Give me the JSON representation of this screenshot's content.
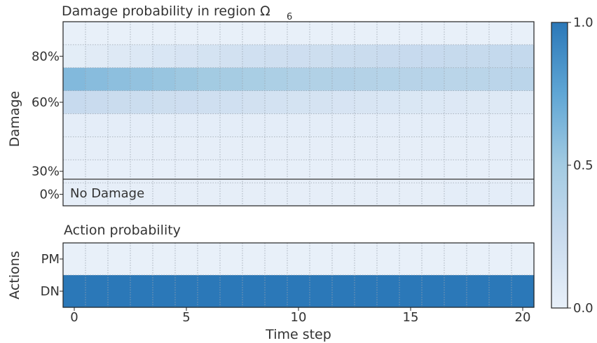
{
  "chart_data": [
    {
      "type": "heatmap",
      "title": "Damage probability in region Ω",
      "title_subscript": "6",
      "ylabel": "Damage",
      "time_steps": [
        0,
        1,
        2,
        3,
        4,
        5,
        6,
        7,
        8,
        9,
        10,
        11,
        12,
        13,
        14,
        15,
        16,
        17,
        18,
        19,
        20
      ],
      "rows": [
        "90%",
        "80%",
        "70%",
        "60%",
        "50%",
        "40%",
        "30%",
        "No Damage"
      ],
      "ytick_labels": [
        {
          "row": "80%",
          "text": "80%"
        },
        {
          "row": "60%",
          "text": "60%"
        },
        {
          "row": "30%",
          "text": "30%"
        },
        {
          "row": "No Damage",
          "text": "0%"
        }
      ],
      "inside_label": "No Damage",
      "values": [
        [
          0.0,
          0.0,
          0.0,
          0.0,
          0.0,
          0.0,
          0.0,
          0.0,
          0.0,
          0.0,
          0.0,
          0.0,
          0.0,
          0.0,
          0.0,
          0.0,
          0.0,
          0.0,
          0.0,
          0.0,
          0.0
        ],
        [
          0.04,
          0.06,
          0.08,
          0.1,
          0.12,
          0.14,
          0.16,
          0.18,
          0.19,
          0.2,
          0.21,
          0.22,
          0.23,
          0.24,
          0.25,
          0.26,
          0.26,
          0.27,
          0.27,
          0.28,
          0.28
        ],
        [
          0.62,
          0.6,
          0.58,
          0.56,
          0.54,
          0.52,
          0.5,
          0.48,
          0.46,
          0.44,
          0.42,
          0.41,
          0.4,
          0.39,
          0.38,
          0.37,
          0.36,
          0.35,
          0.35,
          0.34,
          0.34
        ],
        [
          0.26,
          0.25,
          0.24,
          0.23,
          0.22,
          0.21,
          0.2,
          0.19,
          0.18,
          0.17,
          0.16,
          0.15,
          0.14,
          0.13,
          0.12,
          0.11,
          0.1,
          0.09,
          0.08,
          0.08,
          0.07
        ],
        [
          0.03,
          0.03,
          0.03,
          0.03,
          0.03,
          0.03,
          0.03,
          0.03,
          0.03,
          0.03,
          0.03,
          0.03,
          0.03,
          0.03,
          0.03,
          0.03,
          0.03,
          0.03,
          0.03,
          0.03,
          0.03
        ],
        [
          0.02,
          0.02,
          0.02,
          0.02,
          0.02,
          0.02,
          0.02,
          0.02,
          0.02,
          0.02,
          0.02,
          0.02,
          0.02,
          0.02,
          0.02,
          0.02,
          0.02,
          0.02,
          0.02,
          0.02,
          0.02
        ],
        [
          0.01,
          0.01,
          0.01,
          0.01,
          0.01,
          0.01,
          0.01,
          0.01,
          0.01,
          0.01,
          0.01,
          0.01,
          0.01,
          0.01,
          0.01,
          0.01,
          0.01,
          0.01,
          0.01,
          0.01,
          0.01
        ],
        [
          0.02,
          0.02,
          0.02,
          0.02,
          0.02,
          0.02,
          0.02,
          0.02,
          0.02,
          0.02,
          0.02,
          0.02,
          0.02,
          0.02,
          0.02,
          0.02,
          0.02,
          0.03,
          0.03,
          0.03,
          0.03
        ]
      ]
    },
    {
      "type": "heatmap",
      "title": "Action probability",
      "ylabel": "Actions",
      "xlabel": "Time step",
      "xticks": [
        0,
        5,
        10,
        15,
        20
      ],
      "rows": [
        "PM",
        "DN"
      ],
      "time_steps": [
        0,
        1,
        2,
        3,
        4,
        5,
        6,
        7,
        8,
        9,
        10,
        11,
        12,
        13,
        14,
        15,
        16,
        17,
        18,
        19,
        20
      ],
      "values": [
        [
          0,
          0,
          0,
          0,
          0,
          0,
          0,
          0,
          0,
          0,
          0,
          0,
          0,
          0,
          0,
          0,
          0,
          0,
          0,
          0,
          0
        ],
        [
          1,
          1,
          1,
          1,
          1,
          1,
          1,
          1,
          1,
          1,
          1,
          1,
          1,
          1,
          1,
          1,
          1,
          1,
          1,
          1,
          1
        ]
      ]
    }
  ],
  "colorbar": {
    "range": [
      0.0,
      1.0
    ],
    "ticks": [
      "0.0",
      "0.5",
      "1.0"
    ],
    "colors": [
      "#e8f0f9",
      "#c9dbee",
      "#a3cbe2",
      "#5fa6d5",
      "#2b78b8"
    ]
  },
  "grid": "dotted"
}
